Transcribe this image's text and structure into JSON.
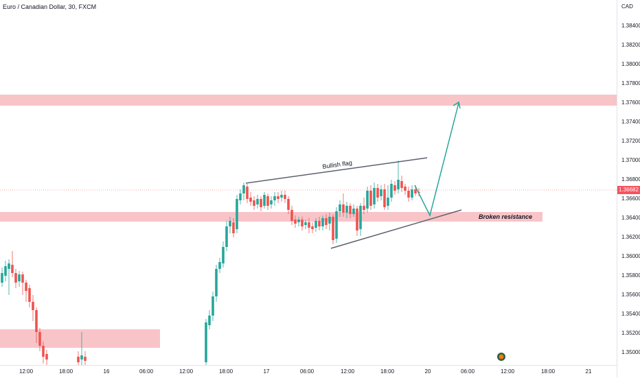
{
  "title": "Euro / Canadian Dollar, 30, FXCM",
  "currency": "CAD",
  "last_price": "1.36682",
  "price_ticks": [
    "1.38400",
    "1.38200",
    "1.38000",
    "1.37800",
    "1.37600",
    "1.37400",
    "1.37200",
    "1.37000",
    "1.36800",
    "1.36600",
    "1.36400",
    "1.36200",
    "1.36000",
    "1.35800",
    "1.35600",
    "1.35400",
    "1.35200",
    "1.35000"
  ],
  "time_ticks": [
    "12:00",
    "18:00",
    "16",
    "06:00",
    "12:00",
    "18:00",
    "17",
    "06:00",
    "12:00",
    "18:00",
    "20",
    "06:00",
    "12:00",
    "18:00",
    "21"
  ],
  "annotations": {
    "flag_label": "Bullish flag",
    "resistance_label": "Broken resistance"
  },
  "colors": {
    "up": "#26a69a",
    "down": "#ef5350",
    "zone": "#f8c4c8",
    "line": "#5d606b",
    "arrow": "#26a69a"
  },
  "icons": [
    "event-marker-icon"
  ]
}
